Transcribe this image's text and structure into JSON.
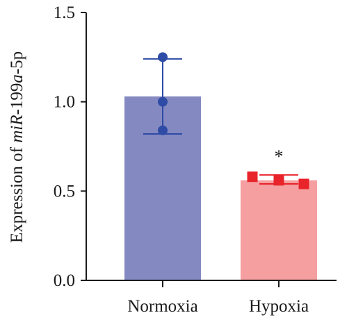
{
  "chart_data": {
    "type": "bar",
    "categories": [
      "Normoxia",
      "Hypoxia"
    ],
    "values": [
      1.03,
      0.56
    ],
    "error": [
      {
        "low": 0.82,
        "high": 1.24
      },
      {
        "low": 0.54,
        "high": 0.59
      }
    ],
    "points": [
      [
        1.25,
        1.0,
        0.84
      ],
      [
        0.58,
        0.56,
        0.54
      ]
    ],
    "significance": [
      "",
      "*"
    ],
    "ylabel": {
      "prefix": "Expression of ",
      "gene_italic_1": "miR",
      "mid": "-199",
      "gene_italic_2": "a",
      "suffix": "-5p"
    },
    "yticks": [
      "0.0",
      "0.5",
      "1.0",
      "1.5"
    ],
    "ylim": [
      0,
      1.5
    ],
    "grid": false,
    "legend": "none",
    "colors": {
      "bars": [
        "#8589c1",
        "#f59fa0"
      ],
      "points": [
        "#2e4ba6",
        "#e8232a"
      ],
      "axis": "#1a1a1a"
    },
    "markers": [
      "circle",
      "square"
    ]
  }
}
